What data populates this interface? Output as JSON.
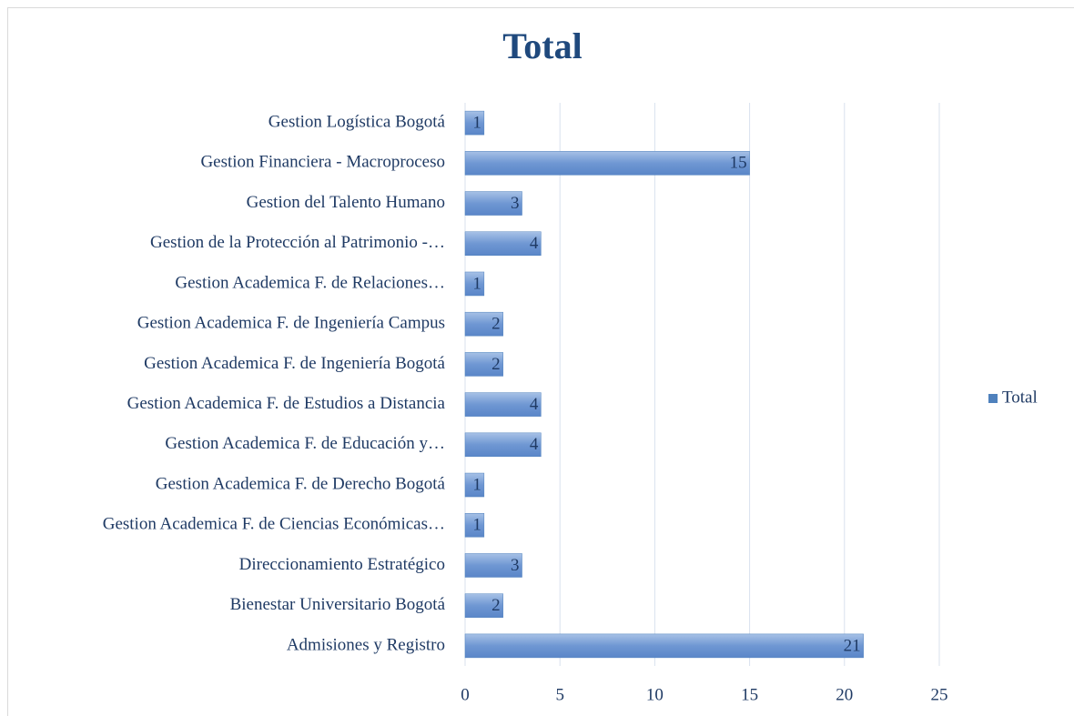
{
  "chart_data": {
    "type": "bar",
    "orientation": "horizontal",
    "title": "Total",
    "categories": [
      "Admisiones y Registro",
      "Bienestar Universitario Bogotá",
      "Direccionamiento Estratégico",
      "Gestion Academica F. de Ciencias Económicas…",
      "Gestion Academica F. de Derecho Bogotá",
      "Gestion Academica F. de Educación y…",
      "Gestion Academica F. de Estudios a Distancia",
      "Gestion Academica F. de Ingeniería Bogotá",
      "Gestion Academica F. de Ingeniería Campus",
      "Gestion Academica F. de Relaciones…",
      "Gestion de la Protección al Patrimonio -…",
      "Gestion del Talento Humano",
      "Gestion Financiera - Macroproceso",
      "Gestion Logística Bogotá"
    ],
    "series": [
      {
        "name": "Total",
        "color": "#4f81bd",
        "values": [
          21,
          2,
          3,
          1,
          1,
          4,
          4,
          2,
          2,
          1,
          4,
          3,
          15,
          1
        ]
      }
    ],
    "xlim": [
      0,
      25
    ],
    "xticks": [
      0,
      5,
      10,
      15,
      20,
      25
    ],
    "grid": true,
    "legend": "right"
  }
}
